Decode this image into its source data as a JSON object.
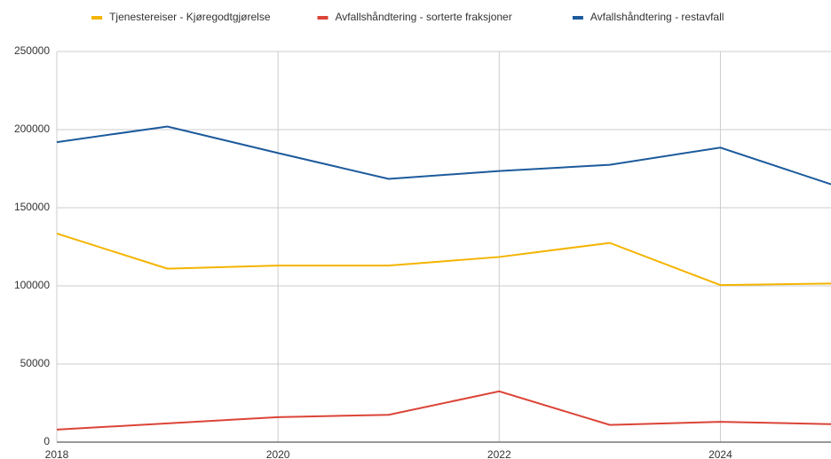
{
  "chart_data": {
    "type": "line",
    "x": [
      2018,
      2019,
      2020,
      2021,
      2022,
      2023,
      2024,
      2025
    ],
    "series": [
      {
        "name": "Tjenestereiser - Kjøregodtgjørelse",
        "color": "#f4b400",
        "values": [
          133500,
          111000,
          113000,
          113000,
          118500,
          127500,
          100500,
          101500
        ]
      },
      {
        "name": "Avfallshåndtering - sorterte fraksjoner",
        "color": "#db4437",
        "values": [
          8000,
          12000,
          16000,
          17500,
          32500,
          11000,
          13000,
          11500
        ]
      },
      {
        "name": "Avfallshåndtering - restavfall",
        "color": "#1c5a9c",
        "values": [
          192000,
          202000,
          185000,
          168500,
          173500,
          177500,
          188500,
          165000
        ]
      }
    ],
    "xlim": [
      2018,
      2025
    ],
    "xticks": [
      2018,
      2020,
      2022,
      2024
    ],
    "ylim": [
      0,
      250000
    ],
    "yticks": [
      0,
      50000,
      100000,
      150000,
      200000,
      250000
    ],
    "grid": true,
    "legend": "top"
  }
}
